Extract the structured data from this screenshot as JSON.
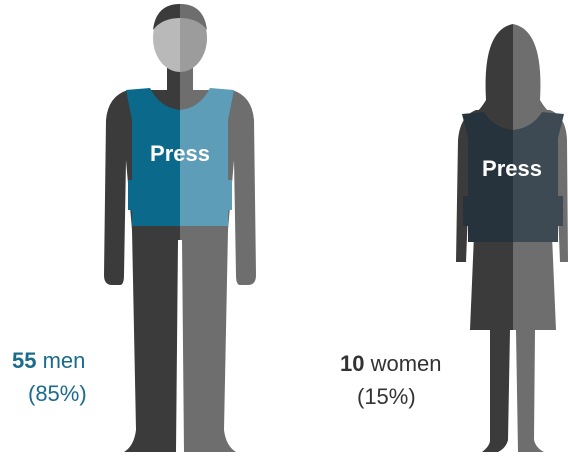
{
  "figures": [
    {
      "vest_label": "Press",
      "count": "55",
      "noun": "men",
      "share": "(85%)"
    },
    {
      "vest_label": "Press",
      "count": "10",
      "noun": "women",
      "share": "(15%)"
    }
  ]
}
